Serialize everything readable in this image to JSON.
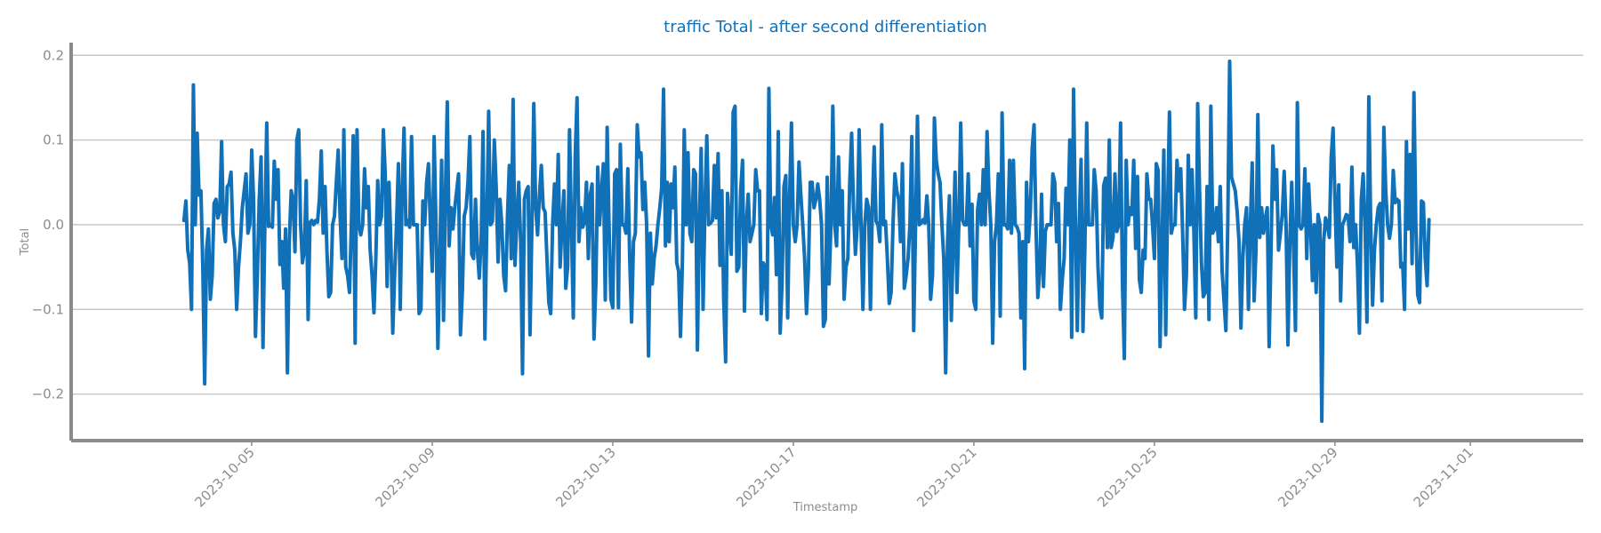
{
  "chart_data": {
    "type": "line",
    "title": "traffic Total - after second differentiation",
    "xlabel": "Timestamp",
    "ylabel": "Total",
    "x_start": "2023-10-03T12:00",
    "x_step_hours": 1,
    "xlim": [
      "2023-10-01T00:00",
      "2023-11-03T12:00"
    ],
    "ylim": [
      -0.255,
      0.215
    ],
    "yticks": [
      -0.2,
      -0.1,
      0.0,
      0.1,
      0.2
    ],
    "ytick_labels": [
      "−0.2",
      "−0.1",
      "0.0",
      "0.1",
      "0.2"
    ],
    "xticks": [
      "2023-10-05",
      "2023-10-09",
      "2023-10-13",
      "2023-10-17",
      "2023-10-21",
      "2023-10-25",
      "2023-10-29",
      "2023-11-01"
    ],
    "xtick_labels": [
      "2023-10-05",
      "2023-10-09",
      "2023-10-13",
      "2023-10-17",
      "2023-10-21",
      "2023-10-25",
      "2023-10-29",
      "2023-11-01"
    ],
    "grid": "y",
    "colors": {
      "line": "#1070b8",
      "title": "#1070b8",
      "axis": "#8c8c8c",
      "grid": "#c8c8c8"
    },
    "series": [
      {
        "values": [
          0.005,
          0.028,
          -0.03,
          -0.045,
          -0.1,
          0.165,
          0.0,
          0.108,
          0.035,
          0.04,
          -0.05,
          -0.188,
          -0.03,
          -0.005,
          -0.088,
          -0.06,
          0.025,
          0.03,
          0.008,
          0.015,
          0.098,
          0.0,
          -0.02,
          0.045,
          0.048,
          0.062,
          -0.01,
          -0.03,
          -0.1,
          -0.05,
          -0.02,
          0.02,
          0.04,
          0.06,
          -0.01,
          0.0,
          0.088,
          0.03,
          -0.132,
          -0.06,
          0.03,
          0.08,
          -0.145,
          0.0,
          0.12,
          -0.002,
          0.0,
          -0.003,
          0.075,
          0.03,
          0.065,
          -0.047,
          -0.02,
          -0.075,
          -0.005,
          -0.175,
          -0.02,
          0.04,
          0.03,
          -0.032,
          0.1,
          0.112,
          0.0,
          -0.045,
          -0.03,
          0.052,
          -0.112,
          0.003,
          0.005,
          0.0,
          0.005,
          0.003,
          0.03,
          0.087,
          -0.01,
          0.045,
          -0.03,
          -0.085,
          -0.08,
          0.0,
          0.01,
          0.05,
          0.088,
          0.01,
          -0.04,
          0.112,
          -0.05,
          -0.06,
          -0.08,
          0.0,
          0.105,
          -0.14,
          0.112,
          0.0,
          -0.012,
          0.0,
          0.066,
          0.02,
          0.045,
          -0.03,
          -0.06,
          -0.104,
          -0.04,
          0.052,
          0.0,
          0.01,
          0.112,
          0.06,
          -0.073,
          0.05,
          -0.02,
          -0.128,
          -0.06,
          0.0,
          0.072,
          -0.1,
          0.04,
          0.114,
          0.0,
          0.005,
          -0.003,
          0.104,
          0.0,
          0.0,
          0.0,
          -0.105,
          -0.1,
          0.028,
          0.0,
          0.05,
          0.072,
          0.0,
          -0.055,
          0.104,
          0.0,
          -0.146,
          -0.04,
          0.076,
          -0.113,
          0.035,
          0.145,
          -0.025,
          0.02,
          -0.005,
          0.02,
          0.04,
          0.06,
          -0.13,
          -0.08,
          0.01,
          0.02,
          0.05,
          0.104,
          -0.035,
          -0.04,
          0.03,
          -0.03,
          -0.063,
          -0.02,
          0.11,
          -0.135,
          -0.003,
          0.134,
          0.0,
          0.004,
          0.1,
          0.045,
          -0.044,
          0.03,
          0.0,
          -0.06,
          -0.078,
          0.01,
          0.07,
          -0.04,
          0.148,
          -0.048,
          0.005,
          0.05,
          -0.02,
          -0.176,
          0.03,
          0.04,
          0.045,
          -0.13,
          0.0,
          0.143,
          0.02,
          -0.012,
          0.035,
          0.07,
          0.02,
          0.015,
          -0.04,
          -0.092,
          -0.105,
          0.0,
          0.048,
          0.0,
          0.083,
          -0.05,
          0.0,
          0.04,
          -0.075,
          -0.05,
          0.112,
          0.0,
          -0.11,
          0.08,
          0.15,
          -0.02,
          0.02,
          -0.003,
          0.003,
          0.05,
          -0.04,
          0.035,
          0.048,
          -0.135,
          -0.07,
          0.068,
          0.0,
          0.04,
          0.072,
          -0.089,
          0.115,
          0.0,
          -0.088,
          -0.098,
          0.06,
          0.065,
          -0.098,
          0.095,
          0.0,
          0.0,
          -0.01,
          0.066,
          -0.04,
          -0.115,
          -0.02,
          -0.01,
          0.118,
          0.08,
          0.085,
          0.018,
          0.05,
          0.0,
          -0.155,
          -0.01,
          -0.07,
          -0.04,
          -0.025,
          0.0,
          0.02,
          0.044,
          0.16,
          -0.025,
          0.05,
          -0.02,
          0.048,
          0.02,
          0.068,
          -0.045,
          -0.055,
          -0.132,
          -0.045,
          0.112,
          0.0,
          0.085,
          -0.01,
          -0.02,
          0.065,
          0.06,
          -0.148,
          0.0,
          0.09,
          -0.1,
          0.02,
          0.105,
          0.0,
          0.002,
          0.005,
          0.07,
          0.008,
          0.084,
          -0.048,
          0.04,
          -0.09,
          -0.162,
          0.037,
          0.0,
          -0.035,
          0.133,
          0.14,
          -0.055,
          -0.05,
          0.04,
          0.076,
          -0.102,
          0.0,
          0.036,
          -0.02,
          -0.01,
          0.0,
          0.065,
          0.04,
          0.04,
          -0.105,
          -0.045,
          -0.05,
          -0.112,
          0.161,
          0.0,
          -0.012,
          0.032,
          -0.059,
          0.11,
          -0.128,
          -0.07,
          0.045,
          0.058,
          -0.11,
          0.03,
          0.12,
          0.0,
          -0.02,
          0.0,
          0.074,
          0.035,
          0.0,
          -0.04,
          -0.105,
          -0.055,
          0.05,
          0.05,
          0.02,
          0.03,
          0.048,
          0.03,
          0.0,
          -0.12,
          -0.112,
          0.056,
          -0.07,
          0.0,
          0.14,
          0.0,
          -0.025,
          0.08,
          0.0,
          0.04,
          -0.088,
          -0.05,
          -0.04,
          0.05,
          0.108,
          0.02,
          -0.035,
          0.0,
          0.112,
          0.0,
          -0.1,
          0.0,
          0.03,
          0.02,
          -0.1,
          0.02,
          0.092,
          0.004,
          0.0,
          -0.02,
          0.118,
          0.0,
          0.004,
          -0.04,
          -0.093,
          -0.08,
          0.0,
          0.06,
          0.04,
          0.03,
          -0.02,
          0.072,
          -0.075,
          -0.06,
          -0.04,
          0.0,
          0.104,
          -0.125,
          0.0,
          0.128,
          0.0,
          0.002,
          0.006,
          0.002,
          0.034,
          0.0,
          -0.088,
          -0.06,
          0.126,
          0.076,
          0.06,
          0.05,
          0.0,
          -0.04,
          -0.175,
          -0.02,
          0.034,
          -0.113,
          -0.02,
          0.062,
          -0.08,
          0.0,
          0.12,
          0.005,
          0.0,
          0.0,
          0.06,
          -0.025,
          0.024,
          -0.09,
          -0.1,
          0.018,
          0.036,
          0.0,
          0.065,
          0.0,
          0.11,
          0.04,
          0.0,
          -0.14,
          -0.02,
          0.0,
          0.06,
          -0.108,
          0.132,
          0.0,
          0.0,
          -0.005,
          0.076,
          -0.01,
          0.076,
          0.0,
          -0.003,
          -0.01,
          -0.11,
          -0.02,
          -0.17,
          0.05,
          -0.02,
          0.015,
          0.09,
          0.118,
          0.0,
          -0.086,
          -0.055,
          0.036,
          -0.073,
          -0.008,
          0.0,
          0.0,
          0.0,
          0.06,
          0.05,
          -0.02,
          0.025,
          -0.1,
          -0.065,
          -0.04,
          0.043,
          0.0,
          0.1,
          -0.133,
          0.16,
          0.0,
          -0.125,
          0.0,
          0.077,
          -0.126,
          -0.03,
          0.12,
          0.0,
          0.0,
          0.0,
          0.065,
          0.04,
          -0.05,
          -0.097,
          -0.11,
          0.046,
          0.055,
          -0.027,
          0.1,
          -0.027,
          -0.015,
          0.06,
          -0.008,
          0.0,
          0.12,
          -0.07,
          -0.158,
          0.076,
          0.0,
          0.02,
          0.012,
          0.076,
          -0.028,
          0.057,
          -0.065,
          -0.08,
          -0.03,
          -0.04,
          0.06,
          0.03,
          0.03,
          0.0,
          -0.04,
          0.072,
          0.064,
          -0.144,
          -0.03,
          0.088,
          -0.13,
          0.02,
          0.133,
          -0.01,
          0.0,
          0.0,
          0.076,
          0.04,
          0.066,
          -0.01,
          -0.1,
          -0.06,
          0.082,
          0.0,
          0.065,
          -0.01,
          -0.11,
          0.143,
          0.04,
          -0.045,
          -0.085,
          -0.08,
          0.045,
          -0.112,
          0.14,
          -0.01,
          -0.005,
          0.02,
          -0.02,
          0.045,
          -0.055,
          -0.09,
          -0.125,
          0.0,
          0.193,
          0.056,
          0.048,
          0.04,
          0.015,
          -0.02,
          -0.122,
          -0.04,
          0.0,
          0.02,
          -0.1,
          0.0,
          0.073,
          -0.09,
          -0.03,
          0.13,
          -0.015,
          0.02,
          -0.01,
          0.008,
          0.02,
          -0.144,
          -0.03,
          0.093,
          0.03,
          0.065,
          -0.03,
          -0.01,
          0.012,
          0.063,
          0.0,
          -0.142,
          -0.02,
          0.05,
          -0.03,
          -0.125,
          0.144,
          0.0,
          -0.005,
          0.0,
          0.066,
          -0.04,
          0.048,
          0.0,
          -0.066,
          0.0,
          -0.08,
          0.012,
          0.0,
          -0.232,
          -0.02,
          0.008,
          0.0,
          -0.015,
          0.08,
          0.114,
          0.03,
          -0.05,
          0.047,
          -0.09,
          0.0,
          0.005,
          0.012,
          0.01,
          -0.02,
          0.068,
          -0.027,
          0.0,
          -0.05,
          -0.128,
          0.03,
          0.06,
          0.0,
          -0.115,
          0.151,
          0.0,
          -0.095,
          -0.03,
          0.0,
          0.02,
          0.025,
          -0.09,
          0.115,
          0.04,
          0.0,
          -0.016,
          0.0,
          0.064,
          0.026,
          0.03,
          0.028,
          -0.05,
          -0.046,
          -0.1,
          0.098,
          -0.005,
          0.083,
          -0.046,
          0.156,
          0.0,
          -0.083,
          -0.092,
          0.028,
          0.026,
          -0.04,
          -0.072,
          0.006
        ]
      }
    ]
  }
}
